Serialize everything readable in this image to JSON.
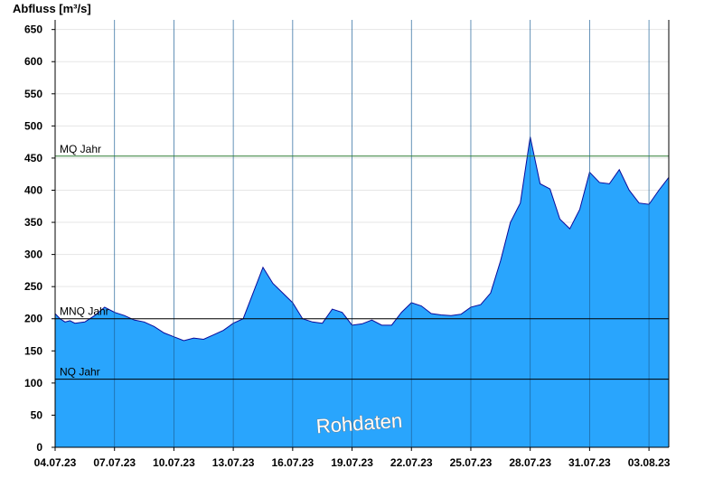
{
  "chart_data": {
    "type": "area",
    "ylabel": "Abfluss [m³/s]",
    "ylim": [
      0,
      665
    ],
    "yticks": [
      0,
      50,
      100,
      150,
      200,
      250,
      300,
      350,
      400,
      450,
      500,
      550,
      600,
      650
    ],
    "xlim": [
      "04.07.23",
      "04.08.23"
    ],
    "xticks": [
      "04.07.23",
      "07.07.23",
      "10.07.23",
      "13.07.23",
      "16.07.23",
      "19.07.23",
      "22.07.23",
      "25.07.23",
      "28.07.23",
      "31.07.23",
      "03.08.23"
    ],
    "grid": "horizontal",
    "colors": {
      "fill": "#29a5fd",
      "line": "#0a0a9a",
      "mq_line": "#2e7d32",
      "ref_line": "#000000"
    },
    "series": [
      {
        "x": [
          "04.07.23",
          "04.07.23 06:00",
          "04.07.23 12:00",
          "04.07.23 18:00",
          "05.07.23",
          "05.07.23 12:00",
          "06.07.23",
          "06.07.23 12:00",
          "07.07.23",
          "07.07.23 12:00",
          "08.07.23",
          "08.07.23 12:00",
          "09.07.23",
          "09.07.23 12:00",
          "10.07.23",
          "10.07.23 12:00",
          "11.07.23",
          "11.07.23 12:00",
          "12.07.23",
          "12.07.23 12:00",
          "13.07.23",
          "13.07.23 12:00",
          "14.07.23",
          "14.07.23 12:00",
          "15.07.23",
          "15.07.23 12:00",
          "16.07.23",
          "16.07.23 12:00",
          "17.07.23",
          "17.07.23 12:00",
          "18.07.23",
          "18.07.23 12:00",
          "19.07.23",
          "19.07.23 12:00",
          "20.07.23",
          "20.07.23 12:00",
          "21.07.23",
          "21.07.23 12:00",
          "22.07.23",
          "22.07.23 12:00",
          "23.07.23",
          "23.07.23 12:00",
          "24.07.23",
          "24.07.23 12:00",
          "25.07.23",
          "25.07.23 12:00",
          "26.07.23",
          "26.07.23 12:00",
          "27.07.23",
          "27.07.23 12:00",
          "28.07.23",
          "28.07.23 12:00",
          "29.07.23",
          "29.07.23 12:00",
          "30.07.23",
          "30.07.23 12:00",
          "31.07.23",
          "31.07.23 12:00",
          "01.08.23",
          "01.08.23 12:00",
          "02.08.23",
          "02.08.23 12:00",
          "03.08.23",
          "03.08.23 12:00",
          "04.08.23"
        ],
        "values": [
          208,
          200,
          195,
          197,
          193,
          195,
          205,
          218,
          210,
          205,
          198,
          195,
          188,
          178,
          172,
          166,
          170,
          168,
          175,
          182,
          193,
          200,
          240,
          280,
          255,
          240,
          225,
          200,
          195,
          193,
          215,
          210,
          190,
          192,
          198,
          190,
          190,
          210,
          225,
          220,
          208,
          206,
          205,
          207,
          218,
          222,
          240,
          290,
          350,
          380,
          483,
          410,
          402,
          355,
          340,
          370,
          428,
          412,
          410,
          432,
          400,
          380,
          378,
          400,
          420
        ]
      }
    ],
    "reference_lines": [
      {
        "label": "MQ Jahr",
        "value": 453
      },
      {
        "label": "MNQ Jahr",
        "value": 200
      },
      {
        "label": "NQ Jahr",
        "value": 106
      }
    ],
    "annotations": [
      "Rohdaten"
    ]
  }
}
